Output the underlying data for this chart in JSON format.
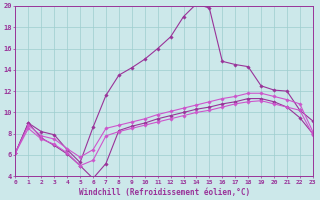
{
  "xlabel": "Windchill (Refroidissement éolien,°C)",
  "xlim": [
    0,
    23
  ],
  "ylim": [
    4,
    20
  ],
  "yticks": [
    4,
    6,
    8,
    10,
    12,
    14,
    16,
    18,
    20
  ],
  "xticks": [
    0,
    1,
    2,
    3,
    4,
    5,
    6,
    7,
    8,
    9,
    10,
    11,
    12,
    13,
    14,
    15,
    16,
    17,
    18,
    19,
    20,
    21,
    22,
    23
  ],
  "background_color": "#cce8ea",
  "grid_color": "#9ecece",
  "line_dark": "#993399",
  "line_light": "#cc55cc",
  "upper_y": [
    6.2,
    9.0,
    8.2,
    7.9,
    6.5,
    5.3,
    8.6,
    11.6,
    13.5,
    14.2,
    15.0,
    16.0,
    17.1,
    19.0,
    20.2,
    19.8,
    14.8,
    14.5,
    14.3,
    12.5,
    12.1,
    12.0,
    10.2,
    9.2
  ],
  "lower_y": [
    6.2,
    9.0,
    7.6,
    6.9,
    6.1,
    5.0,
    3.8,
    5.2,
    8.3,
    8.7,
    9.0,
    9.4,
    9.7,
    10.0,
    10.3,
    10.5,
    10.8,
    11.0,
    11.3,
    11.3,
    11.0,
    10.5,
    9.5,
    8.0
  ],
  "diag_upper_y": [
    6.2,
    8.8,
    7.8,
    7.5,
    6.6,
    5.8,
    6.5,
    8.5,
    8.8,
    9.1,
    9.4,
    9.8,
    10.1,
    10.4,
    10.7,
    11.0,
    11.3,
    11.5,
    11.8,
    11.8,
    11.5,
    11.2,
    10.8,
    8.2
  ],
  "diag_lower_y": [
    6.2,
    8.5,
    7.5,
    7.0,
    6.2,
    5.0,
    5.5,
    7.8,
    8.2,
    8.5,
    8.8,
    9.1,
    9.4,
    9.7,
    10.0,
    10.2,
    10.5,
    10.8,
    11.0,
    11.1,
    10.8,
    10.5,
    10.2,
    7.9
  ]
}
